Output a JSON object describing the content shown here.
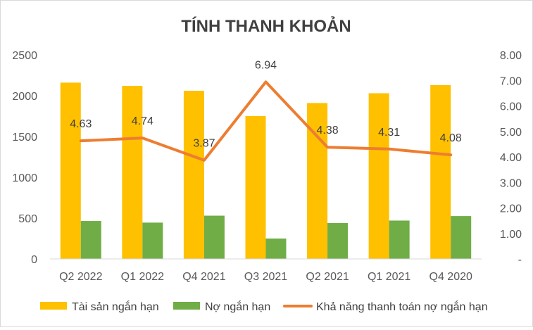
{
  "chart_data": {
    "type": "bar",
    "title": "TÍNH THANH KHOẢN",
    "categories": [
      "Q2 2022",
      "Q1 2022",
      "Q4 2021",
      "Q3 2021",
      "Q2 2021",
      "Q1 2021",
      "Q4 2020"
    ],
    "series": [
      {
        "name": "Tài sản ngắn hạn",
        "type": "bar",
        "axis": "left",
        "color": "#FFC000",
        "values": [
          2160,
          2120,
          2060,
          1750,
          1910,
          2030,
          2130
        ]
      },
      {
        "name": "Nợ ngắn hạn",
        "type": "bar",
        "axis": "left",
        "color": "#70AD47",
        "values": [
          465,
          445,
          530,
          250,
          440,
          470,
          525
        ]
      },
      {
        "name": "Khả năng thanh toán nợ ngắn hạn",
        "type": "line",
        "axis": "right",
        "color": "#ED7D31",
        "values": [
          4.63,
          4.74,
          3.87,
          6.94,
          4.38,
          4.31,
          4.08
        ],
        "labels": [
          "4.63",
          "4.74",
          "3.87",
          "6.94",
          "4.38",
          "4.31",
          "4.08"
        ]
      }
    ],
    "y_left": {
      "min": 0,
      "max": 2500,
      "ticks": [
        "0",
        "500",
        "1000",
        "1500",
        "2000",
        "2500"
      ]
    },
    "y_right": {
      "min": 0,
      "max": 8,
      "ticks": [
        "-",
        "1.00",
        "2.00",
        "3.00",
        "4.00",
        "5.00",
        "6.00",
        "7.00",
        "8.00"
      ]
    },
    "grid": false,
    "legend_position": "bottom"
  }
}
